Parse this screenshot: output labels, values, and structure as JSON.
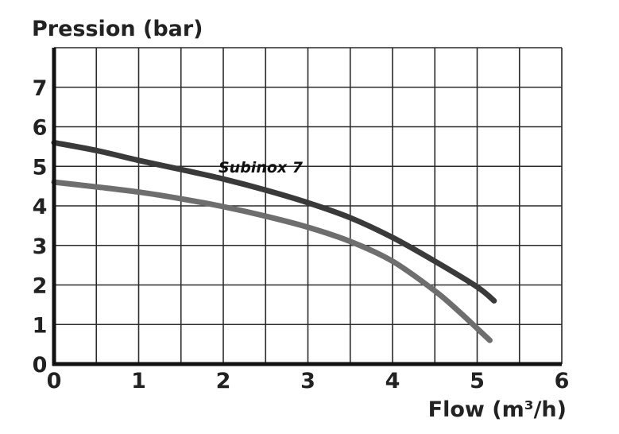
{
  "chart_data": {
    "type": "line",
    "title": "",
    "ylabel": "Pression (bar)",
    "xlabel": "Flow (m³/h)",
    "xlim": [
      0,
      6
    ],
    "ylim": [
      0,
      8
    ],
    "x_ticks": [
      "0",
      "1",
      "2",
      "3",
      "4",
      "5",
      "6"
    ],
    "y_ticks": [
      "0",
      "1",
      "2",
      "3",
      "4",
      "5",
      "6",
      "7"
    ],
    "grid": true,
    "annotation": "Subinox 7",
    "series": [
      {
        "color": "#3a3a3a",
        "x": [
          0,
          0.5,
          1,
          1.5,
          2,
          2.5,
          3,
          3.5,
          4,
          4.5,
          5,
          5.2
        ],
        "y": [
          5.6,
          5.4,
          5.15,
          4.92,
          4.68,
          4.4,
          4.08,
          3.7,
          3.2,
          2.6,
          1.95,
          1.6
        ]
      },
      {
        "color": "#6e6e6e",
        "x": [
          0,
          0.5,
          1,
          1.5,
          2,
          2.5,
          3,
          3.5,
          4,
          4.5,
          4.8,
          5.0,
          5.15
        ],
        "y": [
          4.6,
          4.48,
          4.35,
          4.18,
          3.98,
          3.74,
          3.46,
          3.1,
          2.6,
          1.85,
          1.3,
          0.9,
          0.6
        ]
      }
    ]
  }
}
